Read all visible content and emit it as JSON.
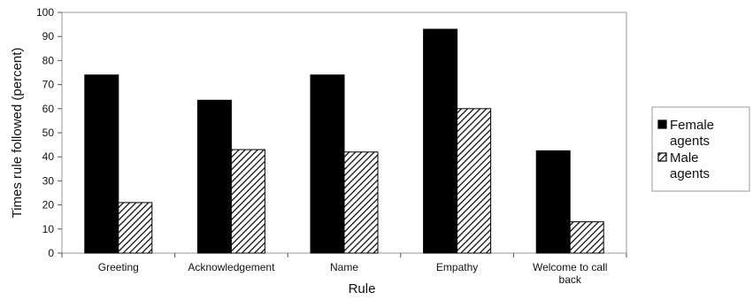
{
  "chart_data": {
    "type": "bar",
    "title": "",
    "xlabel": "Rule",
    "ylabel": "Times rule followed (percent)",
    "ylim": [
      0,
      100
    ],
    "yticks": [
      0,
      10,
      20,
      30,
      40,
      50,
      60,
      70,
      80,
      90,
      100
    ],
    "grid": false,
    "legend_position": "right",
    "categories": [
      [
        "Greeting"
      ],
      [
        "Acknowledgement"
      ],
      [
        "Name"
      ],
      [
        "Empathy"
      ],
      [
        "Welcome to call",
        "back"
      ]
    ],
    "series": [
      {
        "name": [
          "Female",
          "agents"
        ],
        "pattern": "solid",
        "color": "#000000",
        "values": [
          74,
          63.5,
          74,
          93,
          42.5
        ]
      },
      {
        "name": [
          "Male",
          "agents"
        ],
        "pattern": "diagonal-hatch",
        "color": "#000000",
        "values": [
          21,
          43,
          42,
          60,
          13
        ]
      }
    ]
  }
}
